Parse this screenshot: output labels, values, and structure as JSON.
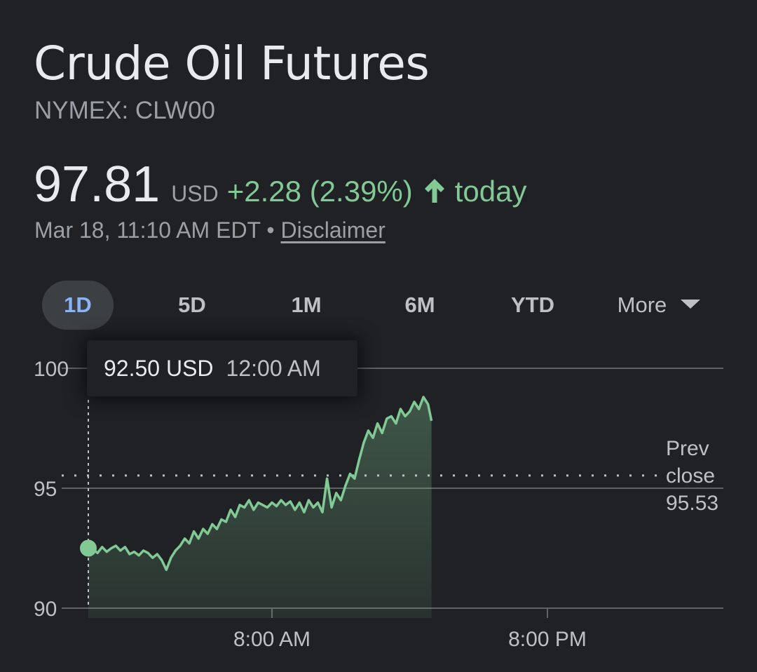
{
  "header": {
    "title": "Crude Oil Futures",
    "exchange": "NYMEX: CLW00"
  },
  "quote": {
    "price": "97.81",
    "currency": "USD",
    "change": "+2.28 (2.39%)",
    "direction_icon": "arrow-up-icon",
    "period": "today",
    "timestamp": "Mar 18, 11:10 AM EDT",
    "separator": "•",
    "disclaimer": "Disclaimer"
  },
  "tabs": [
    {
      "label": "1D",
      "active": true
    },
    {
      "label": "5D",
      "active": false
    },
    {
      "label": "1M",
      "active": false
    },
    {
      "label": "6M",
      "active": false
    },
    {
      "label": "YTD",
      "active": false
    },
    {
      "label": "More",
      "active": false
    }
  ],
  "tooltip": {
    "value": "92.50 USD",
    "time": "12:00 AM"
  },
  "prev_close": {
    "line1": "Prev",
    "line2": "close",
    "value": "95.53"
  },
  "colors": {
    "background": "#202124",
    "line": "#81c995",
    "positive": "#81c995",
    "grid": "#5f6368",
    "active_tab": "#8ab4f8"
  },
  "chart_data": {
    "type": "area",
    "x_unit": "hours since 12:00 AM",
    "y_unit": "USD",
    "ylim": [
      90,
      100
    ],
    "xlim": [
      0,
      24
    ],
    "yticks": [
      {
        "value": 100,
        "label": "100"
      },
      {
        "value": 95,
        "label": "95"
      },
      {
        "value": 90,
        "label": "90"
      }
    ],
    "xticks": [
      {
        "value": 8,
        "label": "8:00 AM"
      },
      {
        "value": 20,
        "label": "8:00 PM"
      }
    ],
    "prev_close": 95.53,
    "highlight": {
      "x": 0,
      "y": 92.5
    },
    "series": [
      {
        "name": "Crude Oil Futures",
        "points": [
          [
            0.0,
            92.5
          ],
          [
            0.2,
            92.45
          ],
          [
            0.4,
            92.3
          ],
          [
            0.6,
            92.55
          ],
          [
            0.8,
            92.35
          ],
          [
            1.0,
            92.5
          ],
          [
            1.2,
            92.6
          ],
          [
            1.4,
            92.4
          ],
          [
            1.6,
            92.55
          ],
          [
            1.8,
            92.25
          ],
          [
            2.0,
            92.35
          ],
          [
            2.2,
            92.2
          ],
          [
            2.4,
            92.4
          ],
          [
            2.6,
            92.3
          ],
          [
            2.8,
            92.1
          ],
          [
            3.0,
            92.25
          ],
          [
            3.2,
            92.0
          ],
          [
            3.4,
            91.6
          ],
          [
            3.6,
            92.1
          ],
          [
            3.8,
            92.4
          ],
          [
            4.0,
            92.6
          ],
          [
            4.2,
            92.9
          ],
          [
            4.4,
            92.7
          ],
          [
            4.6,
            93.2
          ],
          [
            4.8,
            92.9
          ],
          [
            5.0,
            93.3
          ],
          [
            5.2,
            93.1
          ],
          [
            5.4,
            93.5
          ],
          [
            5.6,
            93.3
          ],
          [
            5.8,
            93.7
          ],
          [
            6.0,
            93.6
          ],
          [
            6.2,
            94.1
          ],
          [
            6.4,
            93.8
          ],
          [
            6.6,
            94.3
          ],
          [
            6.8,
            94.2
          ],
          [
            7.0,
            94.5
          ],
          [
            7.2,
            94.1
          ],
          [
            7.4,
            94.4
          ],
          [
            7.6,
            94.3
          ],
          [
            7.8,
            94.2
          ],
          [
            8.0,
            94.4
          ],
          [
            8.2,
            94.25
          ],
          [
            8.4,
            94.5
          ],
          [
            8.6,
            94.3
          ],
          [
            8.8,
            94.45
          ],
          [
            9.0,
            94.1
          ],
          [
            9.2,
            94.4
          ],
          [
            9.4,
            94.0
          ],
          [
            9.6,
            94.5
          ],
          [
            9.8,
            94.2
          ],
          [
            10.0,
            94.4
          ],
          [
            10.2,
            94.0
          ],
          [
            10.4,
            95.4
          ],
          [
            10.6,
            94.2
          ],
          [
            10.8,
            94.8
          ],
          [
            11.0,
            94.5
          ],
          [
            11.2,
            95.1
          ],
          [
            11.4,
            95.6
          ],
          [
            11.6,
            95.4
          ],
          [
            11.8,
            96.2
          ],
          [
            12.0,
            96.9
          ],
          [
            12.2,
            97.4
          ],
          [
            12.4,
            97.1
          ],
          [
            12.6,
            97.7
          ],
          [
            12.8,
            97.3
          ],
          [
            13.0,
            97.9
          ],
          [
            13.2,
            98.0
          ],
          [
            13.4,
            97.7
          ],
          [
            13.6,
            98.3
          ],
          [
            13.8,
            98.0
          ],
          [
            14.0,
            98.2
          ],
          [
            14.2,
            98.6
          ],
          [
            14.4,
            98.3
          ],
          [
            14.6,
            98.8
          ],
          [
            14.8,
            98.5
          ],
          [
            14.95,
            97.81
          ]
        ]
      }
    ]
  }
}
